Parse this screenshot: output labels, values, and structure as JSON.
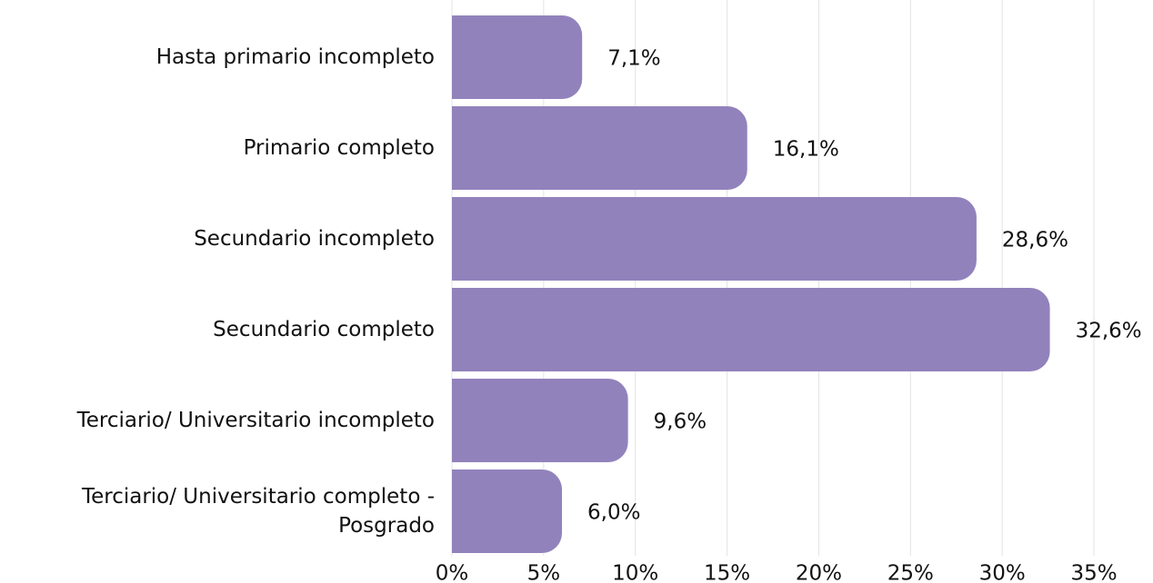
{
  "chart_data": {
    "type": "bar",
    "orientation": "horizontal",
    "categories": [
      "Hasta primario incompleto",
      "Primario completo",
      "Secundario incompleto",
      "Secundario completo",
      "Terciario/ Universitario incompleto",
      "Terciario/ Universitario completo - Posgrado"
    ],
    "values": [
      7.1,
      16.1,
      28.6,
      32.6,
      9.6,
      6.0
    ],
    "value_labels": [
      "7,1%",
      "16,1%",
      "28,6%",
      "32,6%",
      "9,6%",
      "6,0%"
    ],
    "color": "#9282bc",
    "xlim": [
      0,
      35
    ],
    "xticks": [
      {
        "value": 0,
        "label": "0%"
      },
      {
        "value": 5,
        "label": "5%"
      },
      {
        "value": 10,
        "label": "10%"
      },
      {
        "value": 15,
        "label": "15%"
      },
      {
        "value": 20,
        "label": "20%"
      },
      {
        "value": 25,
        "label": "25%"
      },
      {
        "value": 30,
        "label": "30%"
      },
      {
        "value": 35,
        "label": "35%"
      }
    ],
    "grid": true
  }
}
